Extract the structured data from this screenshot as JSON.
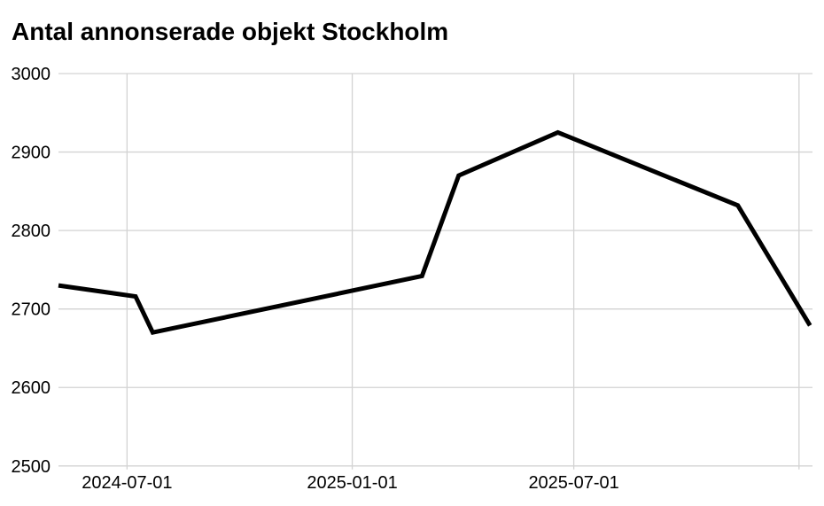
{
  "page": {
    "background_color": "#ffffff"
  },
  "chart_data": {
    "type": "line",
    "title": "Antal annonserade objekt Stockholm",
    "xlabel": "",
    "ylabel": "",
    "ylim": [
      2500,
      3000
    ],
    "x_range": [
      "2024-05-06",
      "2026-01-12"
    ],
    "grid": true,
    "legend": "none",
    "y_axis": {
      "ticks": [
        {
          "value": 3000,
          "label": "3000"
        },
        {
          "value": 2900,
          "label": "2900"
        },
        {
          "value": 2800,
          "label": "2800"
        },
        {
          "value": 2700,
          "label": "2700"
        },
        {
          "value": 2600,
          "label": "2600"
        },
        {
          "value": 2500,
          "label": "2500"
        }
      ]
    },
    "x_axis": {
      "gridlines": [
        {
          "date": "2024-07-01",
          "label": "2024-07-01"
        },
        {
          "date": "2025-01-01",
          "label": "2025-01-01"
        },
        {
          "date": "2025-07-01",
          "label": "2025-07-01"
        },
        {
          "date": "2026-01-01",
          "label": ""
        }
      ]
    },
    "series": [
      {
        "name": "Antal annonserade objekt",
        "points": [
          {
            "x": "2024-05-06",
            "y": 2730
          },
          {
            "x": "2024-07-08",
            "y": 2716
          },
          {
            "x": "2024-07-22",
            "y": 2670
          },
          {
            "x": "2025-02-27",
            "y": 2742
          },
          {
            "x": "2025-03-29",
            "y": 2870
          },
          {
            "x": "2025-06-18",
            "y": 2925
          },
          {
            "x": "2025-11-12",
            "y": 2832
          },
          {
            "x": "2026-01-10",
            "y": 2679
          }
        ]
      }
    ],
    "colors": {
      "line": "#000000",
      "grid": "#d3d3d3",
      "text": "#000000",
      "background": "#ffffff"
    },
    "line_width": 5
  }
}
